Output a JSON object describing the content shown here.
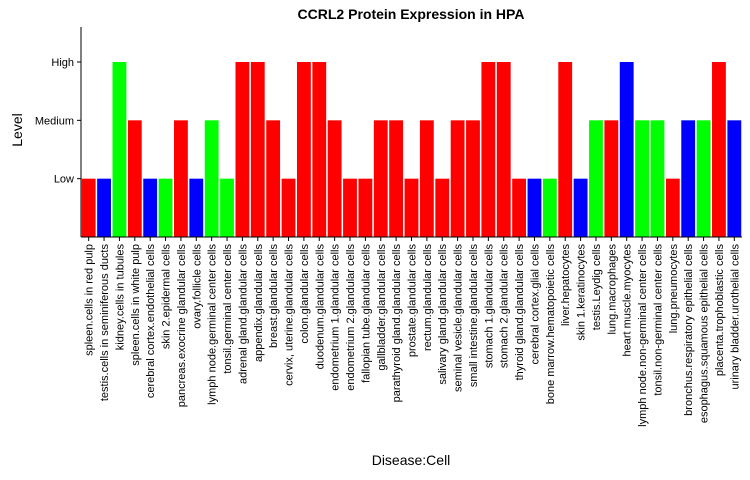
{
  "chart_data": {
    "type": "bar",
    "title": "CCRL2 Protein Expression in HPA",
    "xlabel": "Disease:Cell",
    "ylabel": "Level",
    "y_levels": [
      "Low",
      "Medium",
      "High"
    ],
    "ylim": [
      0,
      3.6
    ],
    "grid": false,
    "legend": "none",
    "colors": {
      "red": "#ff0000",
      "blue": "#0000ff",
      "green": "#00ff00"
    },
    "categories": [
      "spleen.cells in red pulp",
      "testis.cells in seminiferous ducts",
      "kidney.cells in tubules",
      "spleen.cells in white pulp",
      "cerebral cortex.endothelial cells",
      "skin 2.epidermal cells",
      "pancreas.exocrine glandular cells",
      "ovary.follicle cells",
      "lymph node.germinal center cells",
      "tonsil.germinal center cells",
      "adrenal gland.glandular cells",
      "appendix.glandular cells",
      "breast.glandular cells",
      "cervix, uterine.glandular cells",
      "colon.glandular cells",
      "duodenum.glandular cells",
      "endometrium 1.glandular cells",
      "endometrium 2.glandular cells",
      "fallopian tube.glandular cells",
      "gallbladder.glandular cells",
      "parathyroid gland.glandular cells",
      "prostate.glandular cells",
      "rectum.glandular cells",
      "salivary gland.glandular cells",
      "seminal vesicle.glandular cells",
      "small intestine.glandular cells",
      "stomach 1.glandular cells",
      "stomach 2.glandular cells",
      "thyroid gland.glandular cells",
      "cerebral cortex.glial cells",
      "bone marrow.hematopoietic cells",
      "liver.hepatocytes",
      "skin 1.keratinocytes",
      "testis.Leydig cells",
      "lung.macrophages",
      "heart muscle.myocytes",
      "lymph node.non-germinal center cells",
      "tonsil.non-germinal center cells",
      "lung.pneumocytes",
      "bronchus.respiratory epithelial cells",
      "esophagus.squamous epithelial cells",
      "placenta.trophoblastic cells",
      "urinary bladder.urothelial cells"
    ],
    "values": [
      1,
      1,
      3,
      2,
      1,
      1,
      2,
      1,
      2,
      1,
      3,
      3,
      2,
      1,
      3,
      3,
      2,
      1,
      1,
      2,
      2,
      1,
      2,
      1,
      2,
      2,
      3,
      3,
      1,
      1,
      1,
      3,
      1,
      2,
      2,
      3,
      2,
      2,
      1,
      2,
      2,
      3,
      2
    ],
    "bar_colors": [
      "red",
      "blue",
      "green",
      "red",
      "blue",
      "green",
      "red",
      "blue",
      "green",
      "green",
      "red",
      "red",
      "red",
      "red",
      "red",
      "red",
      "red",
      "red",
      "red",
      "red",
      "red",
      "red",
      "red",
      "red",
      "red",
      "red",
      "red",
      "red",
      "red",
      "blue",
      "green",
      "red",
      "blue",
      "green",
      "red",
      "blue",
      "green",
      "green",
      "red",
      "blue",
      "green",
      "red",
      "blue"
    ]
  }
}
